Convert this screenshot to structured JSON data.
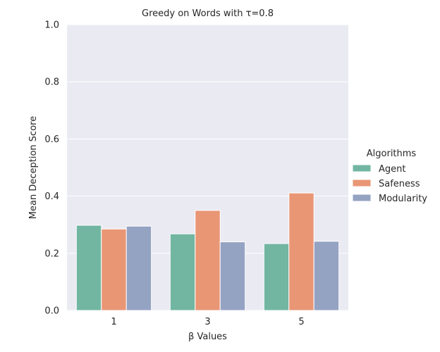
{
  "chart_data": {
    "type": "bar",
    "title": "Greedy on Words with τ=0.8",
    "xlabel": "β Values",
    "ylabel": "Mean Deception Score",
    "categories": [
      "1",
      "3",
      "5"
    ],
    "series": [
      {
        "name": "Agent",
        "values": [
          0.298,
          0.268,
          0.234
        ],
        "color": "#72b6a1"
      },
      {
        "name": "Safeness",
        "values": [
          0.285,
          0.35,
          0.411
        ],
        "color": "#e99675"
      },
      {
        "name": "Modularity",
        "values": [
          0.295,
          0.24,
          0.242
        ],
        "color": "#95a3c3"
      }
    ],
    "ylim": [
      0,
      1.0
    ],
    "yticks": [
      "0.0",
      "0.2",
      "0.4",
      "0.6",
      "0.8",
      "1.0"
    ],
    "grid": true,
    "legend": {
      "title": "Algorithms",
      "position": "right"
    },
    "background_color": "#eaeaf2"
  }
}
